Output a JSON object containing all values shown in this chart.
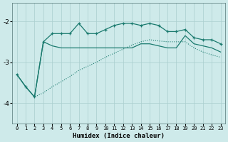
{
  "xlabel": "Humidex (Indice chaleur)",
  "background_color": "#ceeaea",
  "grid_color": "#aacece",
  "line_color": "#1a7a6e",
  "xlim": [
    -0.5,
    23.5
  ],
  "ylim": [
    -4.5,
    -1.55
  ],
  "yticks": [
    -4,
    -3,
    -2
  ],
  "xticks": [
    0,
    1,
    2,
    3,
    4,
    5,
    6,
    7,
    8,
    9,
    10,
    11,
    12,
    13,
    14,
    15,
    16,
    17,
    18,
    19,
    20,
    21,
    22,
    23
  ],
  "line1_x": [
    0,
    1,
    2,
    3,
    4,
    5,
    6,
    7,
    8,
    9,
    10,
    11,
    12,
    13,
    14,
    15,
    16,
    17,
    18,
    19,
    20,
    21,
    22,
    23
  ],
  "line1_y": [
    -3.3,
    -3.6,
    -3.85,
    -2.5,
    -2.3,
    -2.3,
    -2.3,
    -2.05,
    -2.3,
    -2.3,
    -2.2,
    -2.1,
    -2.05,
    -2.05,
    -2.1,
    -2.05,
    -2.1,
    -2.25,
    -2.25,
    -2.2,
    -2.4,
    -2.45,
    -2.45,
    -2.55
  ],
  "line2_x": [
    0,
    1,
    2,
    3,
    4,
    5,
    6,
    7,
    8,
    9,
    10,
    11,
    12,
    13,
    14,
    15,
    16,
    17,
    18,
    19,
    20,
    21,
    22,
    23
  ],
  "line2_y": [
    -3.3,
    -3.6,
    -3.85,
    -2.5,
    -2.6,
    -2.65,
    -2.65,
    -2.65,
    -2.65,
    -2.65,
    -2.65,
    -2.65,
    -2.65,
    -2.65,
    -2.55,
    -2.55,
    -2.6,
    -2.65,
    -2.65,
    -2.35,
    -2.55,
    -2.6,
    -2.65,
    -2.75
  ],
  "line3_x": [
    0,
    1,
    2,
    3,
    4,
    5,
    6,
    7,
    8,
    9,
    10,
    11,
    12,
    13,
    14,
    15,
    16,
    17,
    18,
    19,
    20,
    21,
    22,
    23
  ],
  "line3_y": [
    -3.3,
    -3.6,
    -3.85,
    -3.75,
    -3.6,
    -3.48,
    -3.35,
    -3.2,
    -3.1,
    -3.0,
    -2.88,
    -2.78,
    -2.68,
    -2.58,
    -2.5,
    -2.45,
    -2.48,
    -2.5,
    -2.5,
    -2.5,
    -2.65,
    -2.75,
    -2.82,
    -2.88
  ]
}
